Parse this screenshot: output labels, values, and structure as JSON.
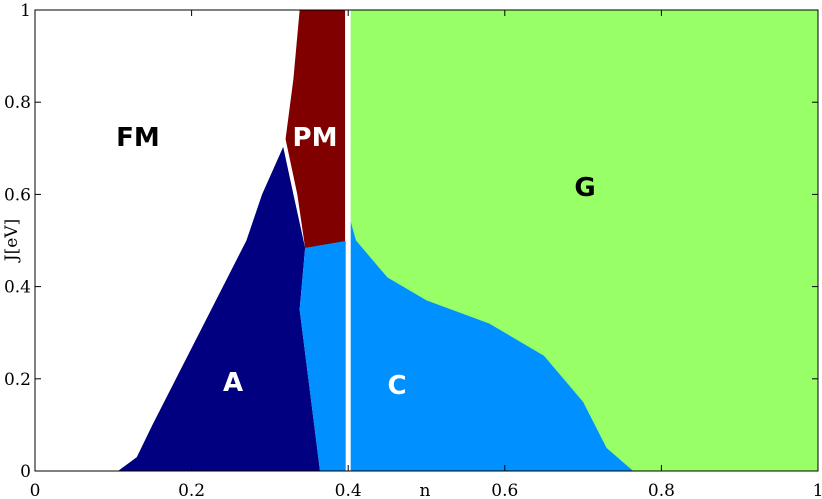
{
  "chart_data": {
    "type": "region",
    "xlabel": "n",
    "ylabel": "J[eV]",
    "xlim": [
      0,
      1
    ],
    "ylim": [
      0,
      1
    ],
    "xticks": [
      0,
      0.2,
      0.4,
      0.6,
      0.8,
      1
    ],
    "yticks": [
      0,
      0.2,
      0.4,
      0.6,
      0.8,
      1
    ],
    "vline": 0.4,
    "vline_color": "#ffffff",
    "series": [
      {
        "name": "FM",
        "color": "#ffffff",
        "x": [
          0,
          0.338,
          0.33,
          0.32,
          0.317,
          0.29,
          0.27,
          0.24,
          0.21,
          0.18,
          0.15,
          0.13,
          0.106,
          0
        ],
        "y": [
          1,
          1,
          0.85,
          0.72,
          0.703,
          0.6,
          0.5,
          0.4,
          0.3,
          0.2,
          0.1,
          0.03,
          0,
          0
        ]
      },
      {
        "name": "G",
        "color": "#99ff66",
        "x": [
          0.4,
          1,
          1,
          0.4
        ],
        "y": [
          1,
          1,
          0,
          0
        ]
      },
      {
        "name": "PM",
        "color": "#800000",
        "x": [
          0.338,
          0.396,
          0.396,
          0.345,
          0.335,
          0.32,
          0.33
        ],
        "y": [
          1,
          1,
          0.484,
          0.484,
          0.6,
          0.72,
          0.85
        ]
      },
      {
        "name": "A",
        "color": "#000080",
        "x": [
          0.106,
          0.13,
          0.15,
          0.18,
          0.21,
          0.24,
          0.27,
          0.29,
          0.317,
          0.33,
          0.345,
          0.338,
          0.364
        ],
        "y": [
          0,
          0.03,
          0.1,
          0.2,
          0.3,
          0.4,
          0.5,
          0.6,
          0.703,
          0.6,
          0.484,
          0.35,
          0
        ]
      },
      {
        "name": "C",
        "color": "#0090ff",
        "x": [
          0.345,
          0.4,
          0.4,
          0.41,
          0.45,
          0.5,
          0.58,
          0.65,
          0.7,
          0.73,
          0.764,
          0.364,
          0.338
        ],
        "y": [
          0.484,
          0.5,
          0.56,
          0.5,
          0.42,
          0.37,
          0.32,
          0.25,
          0.15,
          0.05,
          0,
          0,
          0.35
        ]
      }
    ]
  }
}
